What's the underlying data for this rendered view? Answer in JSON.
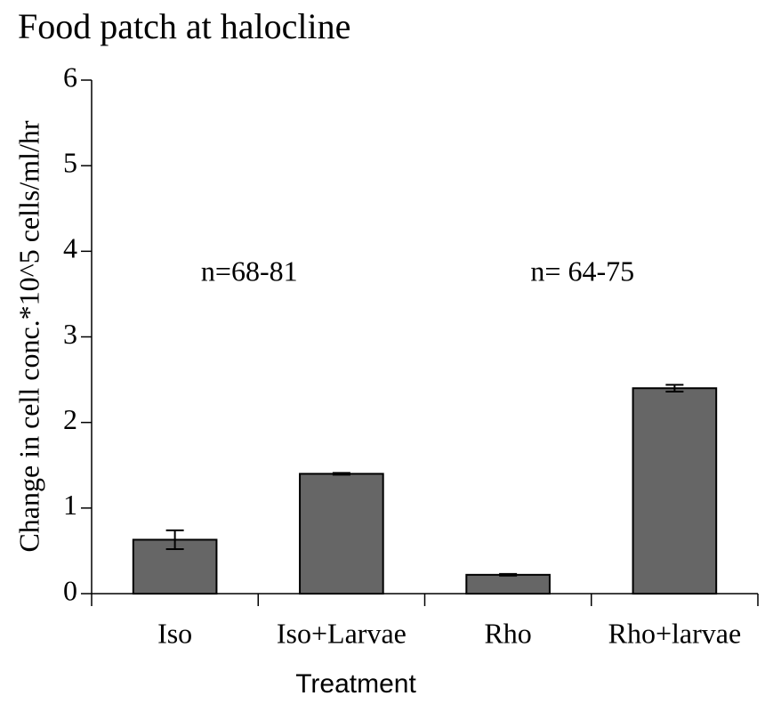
{
  "chart_data": {
    "type": "bar",
    "title": "Food patch at halocline",
    "xlabel": "Treatment",
    "ylabel": "Change in cell conc.*10^5 cells/ml/hr",
    "categories": [
      "Iso",
      "Iso+Larvae",
      "Rho",
      "Rho+larvae"
    ],
    "values": [
      0.63,
      1.4,
      0.22,
      2.4
    ],
    "errors": [
      0.11,
      0.01,
      0.01,
      0.04
    ],
    "color": "#666666",
    "ylim": [
      0,
      6
    ],
    "yticks": [
      0,
      1,
      2,
      3,
      4,
      5,
      6
    ],
    "annotations": [
      "n=68-81",
      "n= 64-75"
    ],
    "grid": false
  }
}
